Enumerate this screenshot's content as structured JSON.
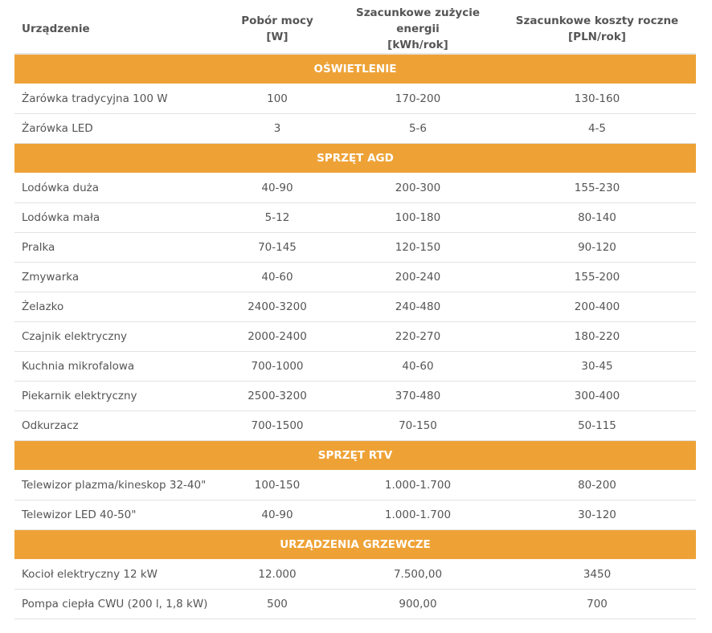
{
  "table": {
    "headers": [
      [
        "Urządzenie"
      ],
      [
        "Pobór mocy",
        "[W]"
      ],
      [
        "Szacunkowe zużycie energii",
        "[kWh/rok]"
      ],
      [
        "Szacunkowe koszty roczne",
        "[PLN/rok]"
      ]
    ],
    "sections": [
      {
        "title": "OŚWIETLENIE",
        "rows": [
          [
            "Żarówka tradycyjna 100 W",
            "100",
            "170-200",
            "130-160"
          ],
          [
            "Żarówka LED",
            "3",
            "5-6",
            "4-5"
          ]
        ]
      },
      {
        "title": "SPRZĘT AGD",
        "rows": [
          [
            "Lodówka duża",
            "40-90",
            "200-300",
            "155-230"
          ],
          [
            "Lodówka mała",
            "5-12",
            "100-180",
            "80-140"
          ],
          [
            "Pralka",
            "70-145",
            "120-150",
            "90-120"
          ],
          [
            "Zmywarka",
            "40-60",
            "200-240",
            "155-200"
          ],
          [
            "Żelazko",
            "2400-3200",
            "240-480",
            "200-400"
          ],
          [
            "Czajnik elektryczny",
            "2000-2400",
            "220-270",
            "180-220"
          ],
          [
            "Kuchnia mikrofalowa",
            "700-1000",
            "40-60",
            "30-45"
          ],
          [
            "Piekarnik elektryczny",
            "2500-3200",
            "370-480",
            "300-400"
          ],
          [
            "Odkurzacz",
            "700-1500",
            "70-150",
            "50-115"
          ]
        ]
      },
      {
        "title": "SPRZĘT RTV",
        "rows": [
          [
            "Telewizor plazma/kineskop 32-40\"",
            "100-150",
            "1.000-1.700",
            "80-200"
          ],
          [
            "Telewizor LED 40-50\"",
            "40-90",
            "1.000-1.700",
            "30-120"
          ]
        ]
      },
      {
        "title": "URZĄDZENIA GRZEWCZE",
        "rows": [
          [
            "Kocioł elektryczny 12 kW",
            "12.000",
            "7.500,00",
            "3450"
          ],
          [
            "Pompa ciepła CWU (200 l, 1,8 kW)",
            "500",
            "900,00",
            "700"
          ]
        ]
      }
    ]
  }
}
